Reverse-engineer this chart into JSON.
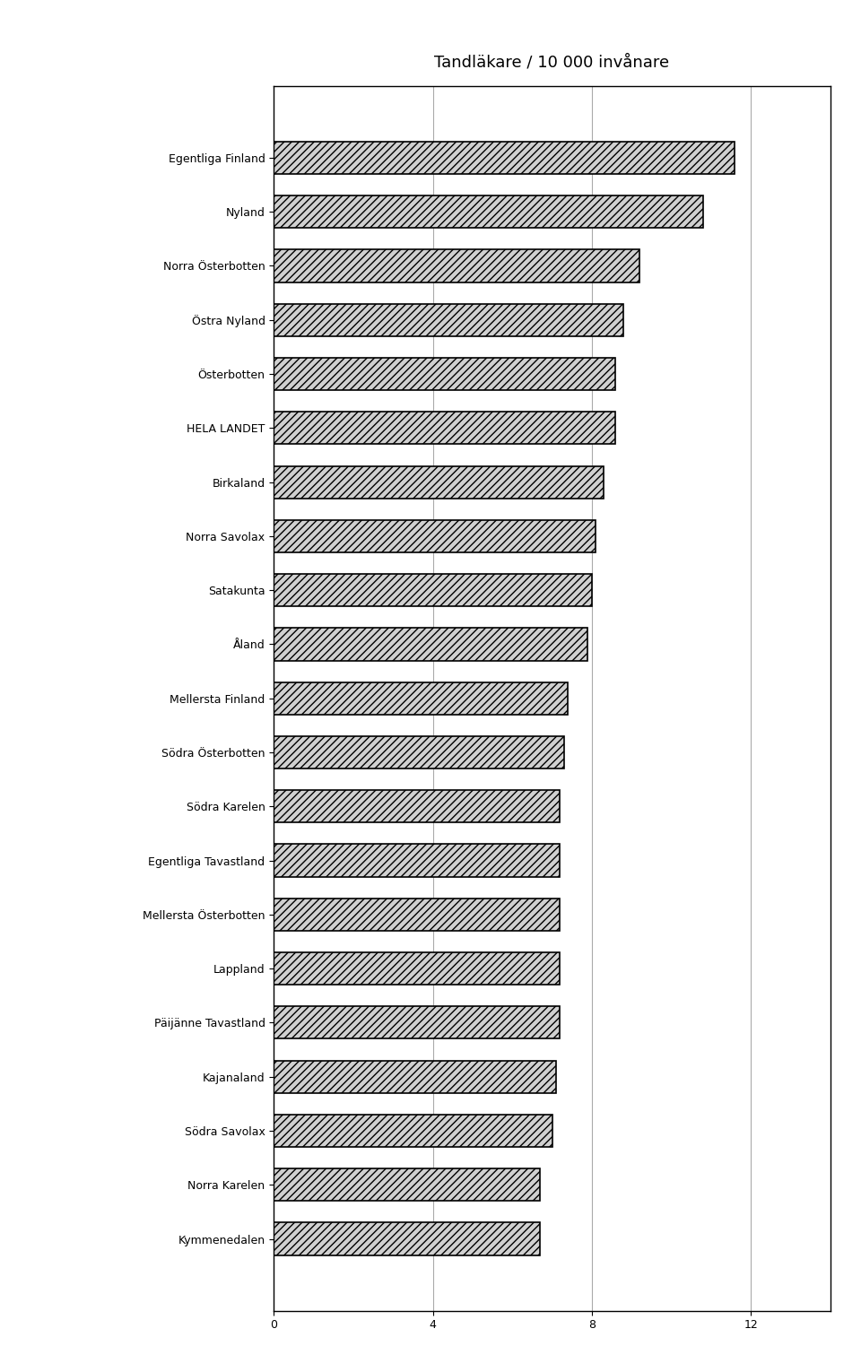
{
  "title": "Tandläkare / 10 000 invånare",
  "categories": [
    "Kymmenedalen",
    "Norra Karelen",
    "Södra Savolax",
    "Kajanaland",
    "Päijänne Tavastland",
    "Lappland",
    "Mellersta Österbotten",
    "Egentliga Tavastland",
    "Södra Karelen",
    "Södra Österbotten",
    "Mellersta Finland",
    "Åland",
    "Satakunta",
    "Norra Savolax",
    "Birkaland",
    "HELA LANDET",
    "Österbotten",
    "Östra Nyland",
    "Norra Österbotten",
    "Nyland",
    "Egentliga Finland"
  ],
  "values": [
    6.7,
    6.7,
    7.0,
    7.1,
    7.2,
    7.2,
    7.2,
    7.2,
    7.2,
    7.3,
    7.4,
    7.9,
    8.0,
    8.1,
    8.3,
    8.6,
    8.6,
    8.8,
    9.2,
    10.8,
    11.6
  ],
  "xlim": [
    0,
    14
  ],
  "xticks": [
    0,
    4,
    8,
    12
  ],
  "bar_color": "#d0d0d0",
  "bar_edgecolor": "#000000",
  "bar_linewidth": 1.2,
  "title_fontsize": 13,
  "tick_fontsize": 9,
  "background_color": "#ffffff",
  "grid_color": "#aaaaaa",
  "hatch": "////"
}
